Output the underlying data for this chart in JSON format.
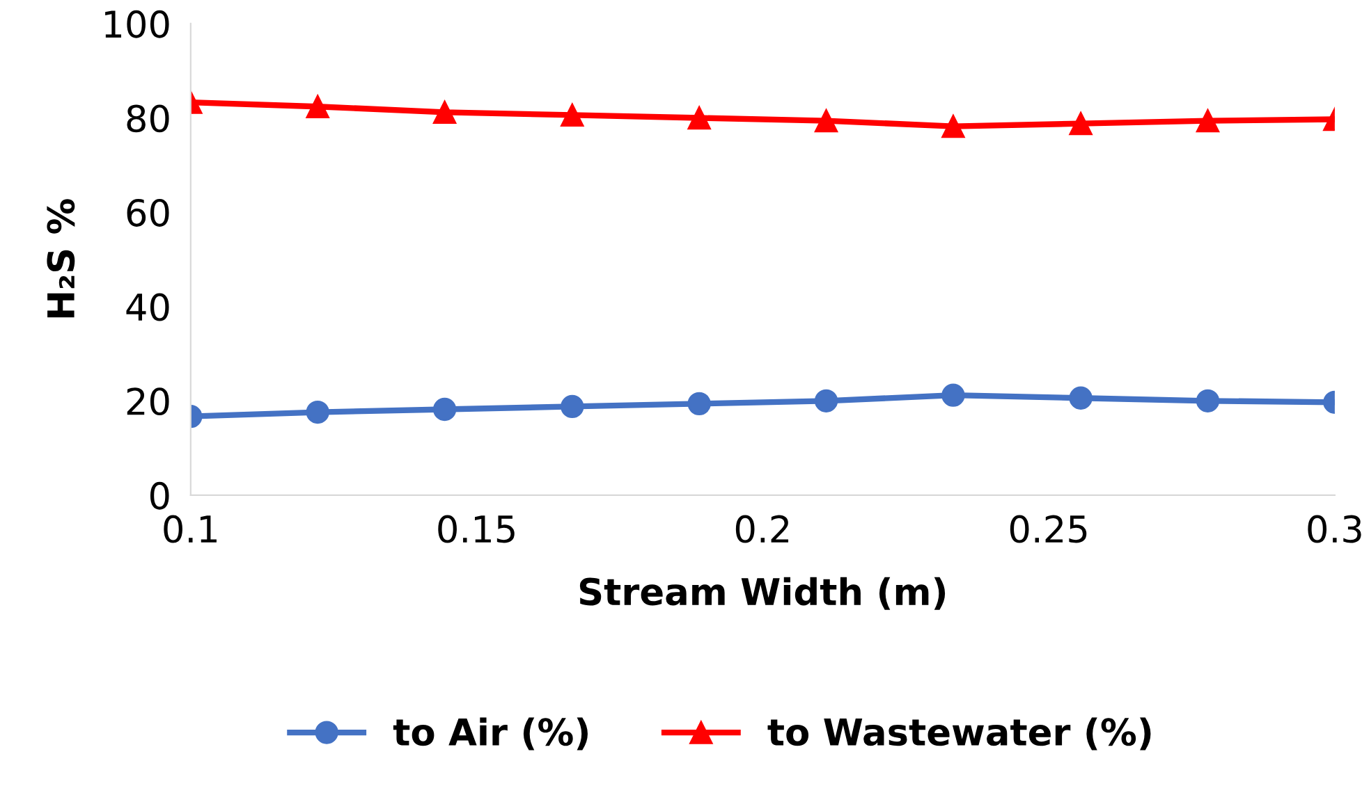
{
  "chart_data": {
    "type": "line",
    "xlabel": "Stream Width (m)",
    "ylabel": "H₂S %",
    "x": [
      0.1,
      0.1222,
      0.1444,
      0.1667,
      0.1889,
      0.2111,
      0.2333,
      0.2556,
      0.2778,
      0.3
    ],
    "series": [
      {
        "name": "to Air (%)",
        "color": "#4472c4",
        "marker": "circle",
        "values": [
          16.7,
          17.6,
          18.2,
          18.8,
          19.4,
          20.0,
          21.2,
          20.6,
          20.0,
          19.7
        ]
      },
      {
        "name": "to Wastewater (%)",
        "color": "#ff0000",
        "marker": "triangle",
        "values": [
          83.3,
          82.4,
          81.2,
          80.6,
          80.0,
          79.4,
          78.2,
          78.8,
          79.4,
          79.7
        ]
      }
    ],
    "xlim": [
      0.1,
      0.3
    ],
    "xticks": [
      0.1,
      0.15,
      0.2,
      0.25,
      0.3
    ],
    "ylim": [
      0,
      100
    ],
    "yticks": [
      0,
      20,
      40,
      60,
      80,
      100
    ],
    "grid": false,
    "legend": "bottom",
    "line_style": "solid"
  }
}
